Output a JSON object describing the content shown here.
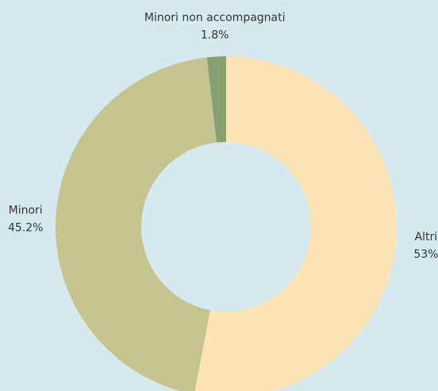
{
  "chart_data": {
    "type": "donut",
    "categories": [
      "Altri",
      "Minori",
      "Minori non accompagnati"
    ],
    "values": [
      53,
      45.2,
      1.8
    ],
    "value_labels": [
      "53%",
      "45.2%",
      "1.8%"
    ],
    "colors": [
      "#fde4b5",
      "#c5c48f",
      "#87a06f"
    ]
  }
}
